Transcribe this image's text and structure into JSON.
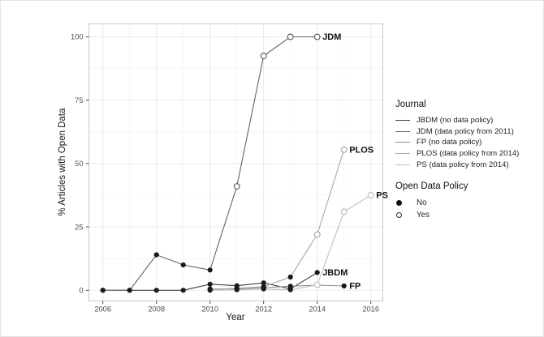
{
  "figure": {
    "xlabel": "Year",
    "ylabel": "% Articles with Open Data"
  },
  "legend": {
    "journal_title": "Journal",
    "policy_title": "Open Data Policy",
    "policy_items": [
      {
        "label": "No",
        "marker": "filled-circle"
      },
      {
        "label": "Yes",
        "marker": "open-circle"
      }
    ]
  },
  "chart_data": {
    "type": "line",
    "title": "",
    "xlabel": "Year",
    "ylabel": "% Articles with Open Data",
    "xlim": [
      2005.5,
      2016.5
    ],
    "ylim": [
      0,
      100
    ],
    "x_ticks": [
      2006,
      2008,
      2010,
      2012,
      2014,
      2016
    ],
    "y_ticks": [
      0,
      25,
      50,
      75,
      100
    ],
    "grid": "major and minor, light gray",
    "legend_position": "right",
    "marker_encoding": {
      "No": "filled black circle",
      "Yes": "open white circle"
    },
    "colors": {
      "point_filled": "#1a1a1a",
      "point_open_fill": "#ffffff",
      "grid_major": "#e9e9e9",
      "grid_minor": "#f4f4f4",
      "panel_border": "#c9c9c9",
      "tick": "#333333",
      "tick_label": "#4d4d4d",
      "end_label": "#111111"
    },
    "series": [
      {
        "name": "JBDM",
        "legend_label": "JBDM (no data policy)",
        "end_label": "JBDM",
        "color": "#3d3d3d",
        "policy_from": null,
        "points": [
          [
            2006,
            0
          ],
          [
            2007,
            0
          ],
          [
            2008,
            0
          ],
          [
            2009,
            0
          ],
          [
            2010,
            2.4
          ],
          [
            2011,
            1.8
          ],
          [
            2012,
            2.9
          ],
          [
            2013,
            0.5
          ],
          [
            2014,
            7
          ]
        ]
      },
      {
        "name": "JDM",
        "legend_label": "JDM (data policy from 2011)",
        "end_label": "JDM",
        "color": "#636363",
        "policy_from": 2011,
        "points": [
          [
            2006,
            0
          ],
          [
            2007,
            0
          ],
          [
            2008,
            14
          ],
          [
            2009,
            10
          ],
          [
            2010,
            8
          ],
          [
            2011,
            41
          ],
          [
            2012,
            92.5
          ],
          [
            2013,
            100
          ],
          [
            2014,
            100
          ]
        ]
      },
      {
        "name": "FP",
        "legend_label": "FP (no data policy)",
        "end_label": "FP",
        "color": "#8e8e8e",
        "policy_from": null,
        "points": [
          [
            2010,
            0.5
          ],
          [
            2011,
            0.5
          ],
          [
            2012,
            1
          ],
          [
            2013,
            1.6
          ],
          [
            2014,
            2
          ],
          [
            2015,
            1.7
          ]
        ]
      },
      {
        "name": "PLOS",
        "legend_label": "PLOS (data policy from 2014)",
        "end_label": "PLOS",
        "color": "#a8a8a8",
        "policy_from": 2014,
        "points": [
          [
            2010,
            0.3
          ],
          [
            2011,
            0.8
          ],
          [
            2012,
            1.4
          ],
          [
            2013,
            5.2
          ],
          [
            2014,
            22
          ],
          [
            2015,
            55.5
          ]
        ]
      },
      {
        "name": "PS",
        "legend_label": "PS (data policy from 2014)",
        "end_label": "PS",
        "color": "#bfbfbf",
        "policy_from": 2014,
        "points": [
          [
            2010,
            0
          ],
          [
            2011,
            0.2
          ],
          [
            2012,
            0.5
          ],
          [
            2013,
            0.2
          ],
          [
            2014,
            2.1
          ],
          [
            2015,
            31
          ],
          [
            2016,
            37.5
          ]
        ]
      }
    ]
  }
}
